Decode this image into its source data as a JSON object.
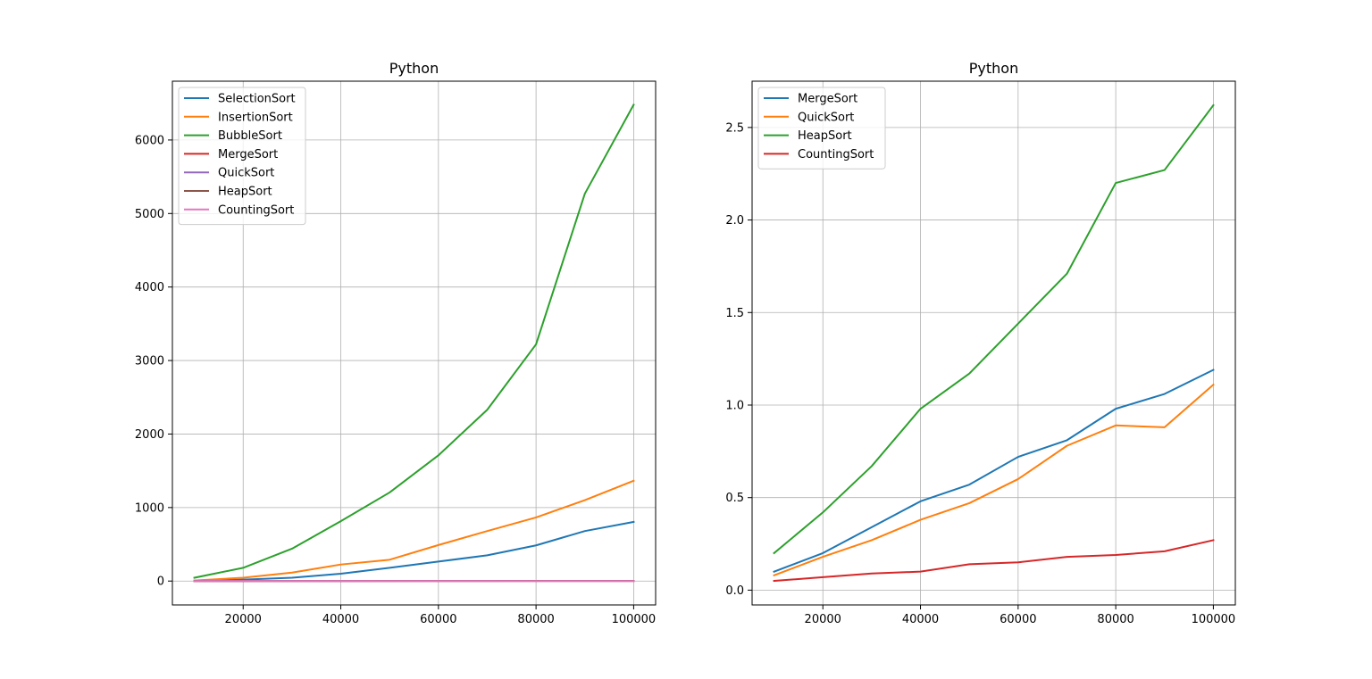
{
  "chart_data": [
    {
      "type": "line",
      "title": "Python",
      "xlabel": "",
      "ylabel": "",
      "x": [
        10000,
        20000,
        30000,
        40000,
        50000,
        60000,
        70000,
        80000,
        90000,
        100000
      ],
      "xticks": [
        20000,
        40000,
        60000,
        80000,
        100000
      ],
      "yticks": [
        0,
        1000,
        2000,
        3000,
        4000,
        5000,
        6000
      ],
      "xlim": [
        5500,
        104500
      ],
      "ylim": [
        -325,
        6800
      ],
      "grid": true,
      "legend_position": "upper-left",
      "series": [
        {
          "name": "SelectionSort",
          "color": "#1f77b4",
          "values": [
            5,
            20,
            45,
            100,
            180,
            265,
            350,
            485,
            680,
            805
          ]
        },
        {
          "name": "InsertionSort",
          "color": "#ff7f0e",
          "values": [
            8,
            45,
            115,
            225,
            290,
            490,
            680,
            865,
            1100,
            1365
          ]
        },
        {
          "name": "BubbleSort",
          "color": "#2ca02c",
          "values": [
            45,
            180,
            440,
            815,
            1205,
            1710,
            2330,
            3220,
            5270,
            6480
          ]
        },
        {
          "name": "MergeSort",
          "color": "#d62728",
          "values": [
            0.1,
            0.2,
            0.34,
            0.48,
            0.57,
            0.72,
            0.81,
            0.98,
            1.06,
            1.19
          ]
        },
        {
          "name": "QuickSort",
          "color": "#9467bd",
          "values": [
            0.08,
            0.18,
            0.27,
            0.38,
            0.47,
            0.6,
            0.78,
            0.89,
            0.88,
            1.11
          ]
        },
        {
          "name": "HeapSort",
          "color": "#8c564b",
          "values": [
            0.2,
            0.42,
            0.67,
            0.98,
            1.17,
            1.44,
            1.71,
            2.2,
            2.27,
            2.62
          ]
        },
        {
          "name": "CountingSort",
          "color": "#e377c2",
          "values": [
            0.05,
            0.07,
            0.09,
            0.1,
            0.14,
            0.15,
            0.18,
            0.19,
            0.21,
            0.27
          ]
        }
      ]
    },
    {
      "type": "line",
      "title": "Python",
      "xlabel": "",
      "ylabel": "",
      "x": [
        10000,
        20000,
        30000,
        40000,
        50000,
        60000,
        70000,
        80000,
        90000,
        100000
      ],
      "xticks": [
        20000,
        40000,
        60000,
        80000,
        100000
      ],
      "yticks": [
        0.0,
        0.5,
        1.0,
        1.5,
        2.0,
        2.5
      ],
      "ytick_labels": [
        "0.0",
        "0.5",
        "1.0",
        "1.5",
        "2.0",
        "2.5"
      ],
      "xlim": [
        5500,
        104500
      ],
      "ylim": [
        -0.08,
        2.75
      ],
      "grid": true,
      "legend_position": "upper-left",
      "series": [
        {
          "name": "MergeSort",
          "color": "#1f77b4",
          "values": [
            0.1,
            0.2,
            0.34,
            0.48,
            0.57,
            0.72,
            0.81,
            0.98,
            1.06,
            1.19
          ]
        },
        {
          "name": "QuickSort",
          "color": "#ff7f0e",
          "values": [
            0.08,
            0.18,
            0.27,
            0.38,
            0.47,
            0.6,
            0.78,
            0.89,
            0.88,
            1.11
          ]
        },
        {
          "name": "HeapSort",
          "color": "#2ca02c",
          "values": [
            0.2,
            0.42,
            0.67,
            0.98,
            1.17,
            1.44,
            1.71,
            2.2,
            2.27,
            2.62
          ]
        },
        {
          "name": "CountingSort",
          "color": "#d62728",
          "values": [
            0.05,
            0.07,
            0.09,
            0.1,
            0.14,
            0.15,
            0.18,
            0.19,
            0.21,
            0.27
          ]
        }
      ]
    }
  ]
}
